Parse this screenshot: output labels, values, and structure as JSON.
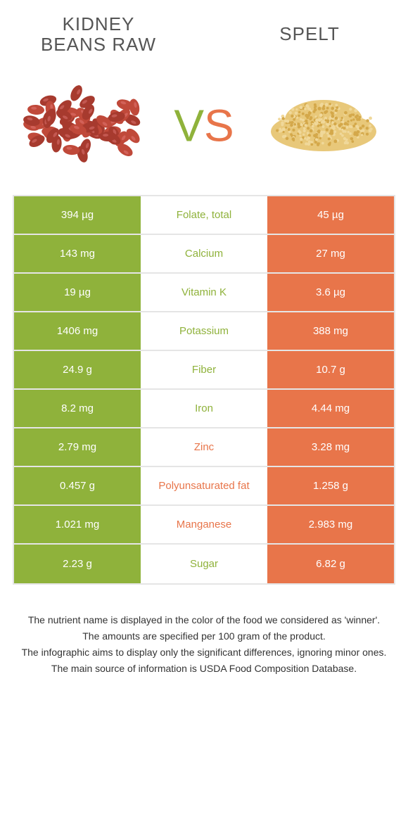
{
  "colors": {
    "green": "#8fb23b",
    "orange": "#e8754a",
    "border": "#e5e5e5",
    "titleText": "#555555",
    "cellText": "#ffffff",
    "footerText": "#333333",
    "beanColor": "#c0493a",
    "beanShade": "#a73a2e",
    "speltColor": "#e8c87a",
    "speltShade": "#d4a84a"
  },
  "header": {
    "leftTitle": "Kidney beans raw",
    "rightTitle": "Spelt",
    "vsV": "V",
    "vsS": "S"
  },
  "rows": [
    {
      "left": "394 µg",
      "mid": "Folate, total",
      "right": "45 µg",
      "winner": "left"
    },
    {
      "left": "143 mg",
      "mid": "Calcium",
      "right": "27 mg",
      "winner": "left"
    },
    {
      "left": "19 µg",
      "mid": "Vitamin K",
      "right": "3.6 µg",
      "winner": "left"
    },
    {
      "left": "1406 mg",
      "mid": "Potassium",
      "right": "388 mg",
      "winner": "left"
    },
    {
      "left": "24.9 g",
      "mid": "Fiber",
      "right": "10.7 g",
      "winner": "left"
    },
    {
      "left": "8.2 mg",
      "mid": "Iron",
      "right": "4.44 mg",
      "winner": "left"
    },
    {
      "left": "2.79 mg",
      "mid": "Zinc",
      "right": "3.28 mg",
      "winner": "right"
    },
    {
      "left": "0.457 g",
      "mid": "Polyunsaturated fat",
      "right": "1.258 g",
      "winner": "right"
    },
    {
      "left": "1.021 mg",
      "mid": "Manganese",
      "right": "2.983 mg",
      "winner": "right"
    },
    {
      "left": "2.23 g",
      "mid": "Sugar",
      "right": "6.82 g",
      "winner": "left"
    }
  ],
  "footer": {
    "line1": "The nutrient name is displayed in the color of the food we considered as 'winner'.",
    "line2": "The amounts are specified per 100 gram of the product.",
    "line3": "The infographic aims to display only the significant differences, ignoring minor ones.",
    "line4": "The main source of information is USDA Food Composition Database."
  }
}
